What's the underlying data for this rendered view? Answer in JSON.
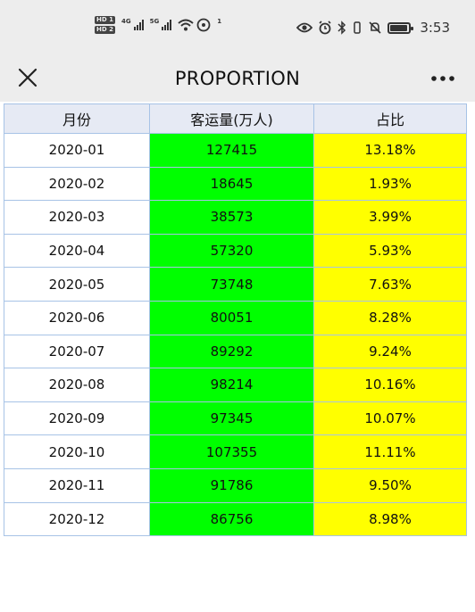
{
  "status": {
    "hd1": "HD 1",
    "hd2": "HD 2",
    "net1": "4G",
    "net2": "5G",
    "wifi_signal": "1",
    "time": "3:53",
    "icons": [
      "eye-icon",
      "alarm-icon",
      "bluetooth-icon",
      "vibrate-icon",
      "bell-off-icon",
      "battery-icon"
    ]
  },
  "nav": {
    "title": "PROPORTION",
    "close_icon": "close-icon",
    "more_icon": "more-icon"
  },
  "table": {
    "headers": [
      "月份",
      "客运量(万人)",
      "占比"
    ],
    "colors": {
      "header": "#e6eaf4",
      "volume": "#00ff00",
      "percent": "#ffff00",
      "border": "#a7c3e6"
    },
    "rows": [
      {
        "month": "2020-01",
        "volume": "127415",
        "percent": "13.18%"
      },
      {
        "month": "2020-02",
        "volume": "18645",
        "percent": "1.93%"
      },
      {
        "month": "2020-03",
        "volume": "38573",
        "percent": "3.99%"
      },
      {
        "month": "2020-04",
        "volume": "57320",
        "percent": "5.93%"
      },
      {
        "month": "2020-05",
        "volume": "73748",
        "percent": "7.63%"
      },
      {
        "month": "2020-06",
        "volume": "80051",
        "percent": "8.28%"
      },
      {
        "month": "2020-07",
        "volume": "89292",
        "percent": "9.24%"
      },
      {
        "month": "2020-08",
        "volume": "98214",
        "percent": "10.16%"
      },
      {
        "month": "2020-09",
        "volume": "97345",
        "percent": "10.07%"
      },
      {
        "month": "2020-10",
        "volume": "107355",
        "percent": "11.11%"
      },
      {
        "month": "2020-11",
        "volume": "91786",
        "percent": "9.50%"
      },
      {
        "month": "2020-12",
        "volume": "86756",
        "percent": "8.98%"
      }
    ]
  }
}
